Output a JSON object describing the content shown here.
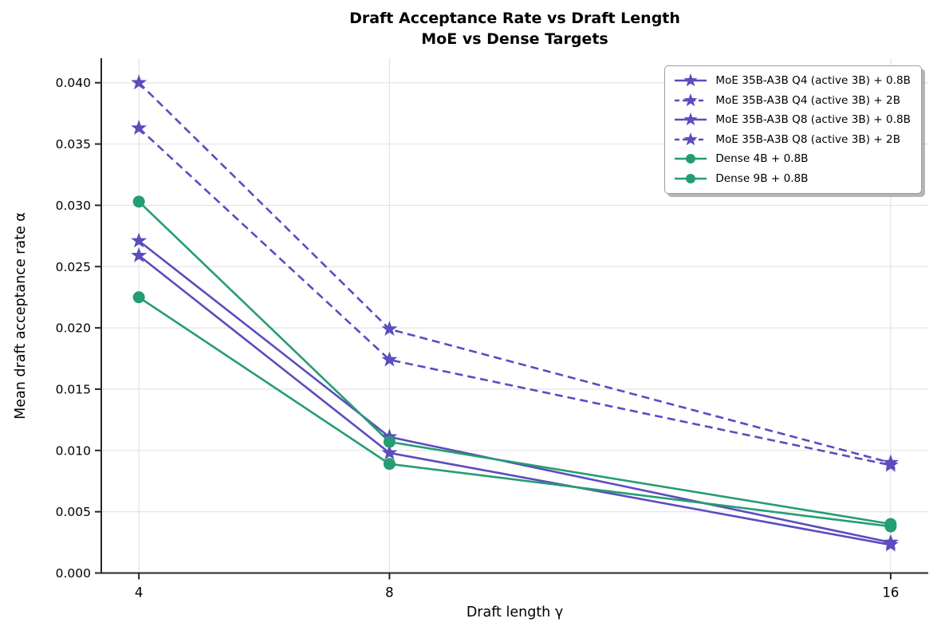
{
  "title": {
    "line1": "Draft Acceptance Rate vs Draft Length",
    "line2": "MoE vs Dense Targets"
  },
  "chart_data": {
    "type": "line",
    "x": [
      4,
      8,
      16
    ],
    "xlabel": "Draft length γ",
    "ylabel": "Mean draft acceptance rate α",
    "xlim": [
      3.4,
      16.6
    ],
    "ylim": [
      0,
      0.042
    ],
    "xticks": [
      4,
      8,
      16
    ],
    "xtick_labels": [
      "4",
      "8",
      "16"
    ],
    "yticks": [
      0,
      0.005,
      0.01,
      0.015,
      0.02,
      0.025,
      0.03,
      0.035,
      0.04
    ],
    "ytick_labels": [
      "0.000",
      "0.005",
      "0.010",
      "0.015",
      "0.020",
      "0.025",
      "0.030",
      "0.035",
      "0.040"
    ],
    "grid": true,
    "legend_position": "upper right",
    "colors": {
      "moe_purple": "#5a4dbe",
      "dense_green": "#259d72",
      "grid": "#e4e4e4",
      "spine": "#262626"
    },
    "series": [
      {
        "name": "MoE 35B-A3B Q4 (active 3B) + 0.8B",
        "color": "#5a4dbe",
        "marker": "star",
        "line": "solid",
        "values": [
          0.0271,
          0.0111,
          0.0025
        ]
      },
      {
        "name": "MoE 35B-A3B Q4 (active 3B) + 2B",
        "color": "#5a4dbe",
        "marker": "star",
        "line": "dashed",
        "values": [
          0.04,
          0.0199,
          0.009
        ]
      },
      {
        "name": "MoE 35B-A3B Q8 (active 3B) + 0.8B",
        "color": "#5a4dbe",
        "marker": "star",
        "line": "solid",
        "values": [
          0.0259,
          0.0098,
          0.0023
        ]
      },
      {
        "name": "MoE 35B-A3B Q8 (active 3B) + 2B",
        "color": "#5a4dbe",
        "marker": "star",
        "line": "dashed",
        "values": [
          0.0363,
          0.0174,
          0.0088
        ]
      },
      {
        "name": "Dense 4B + 0.8B",
        "color": "#259d72",
        "marker": "circle",
        "line": "solid",
        "values": [
          0.0303,
          0.0107,
          0.004
        ]
      },
      {
        "name": "Dense 9B + 0.8B",
        "color": "#259d72",
        "marker": "circle",
        "line": "solid",
        "values": [
          0.0225,
          0.0089,
          0.0038
        ]
      }
    ]
  }
}
